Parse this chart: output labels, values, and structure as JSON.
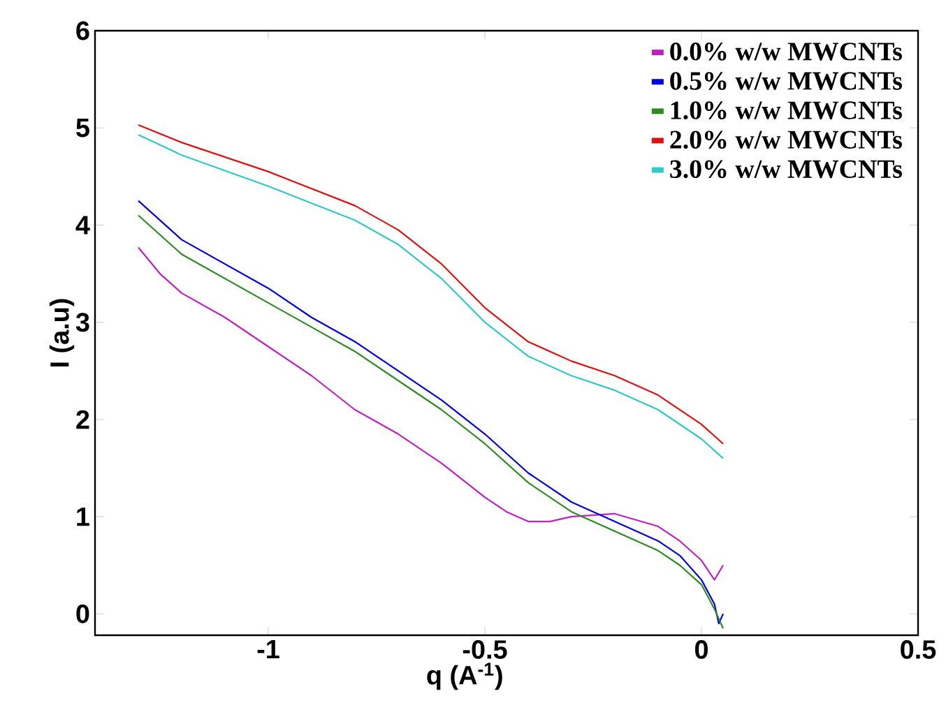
{
  "chart_data": {
    "type": "line",
    "xlabel": "q (A$^{-1}$)",
    "ylabel": "I (a.u)",
    "xlim": [
      -1.4,
      0.5
    ],
    "ylim": [
      -0.22,
      6
    ],
    "xticks": [
      -1,
      -0.5,
      0,
      0.5
    ],
    "yticks": [
      0,
      1,
      2,
      3,
      4,
      5,
      6
    ],
    "legend": "top right",
    "line_style": "solid",
    "series": [
      {
        "name": "0.0% w/w MWCNTs",
        "color": "#c020c0",
        "x": [
          -1.3,
          -1.25,
          -1.2,
          -1.1,
          -1.0,
          -0.9,
          -0.8,
          -0.7,
          -0.6,
          -0.5,
          -0.45,
          -0.4,
          -0.35,
          -0.3,
          -0.2,
          -0.1,
          -0.05,
          0,
          0.03,
          0.05
        ],
        "values": [
          3.77,
          3.5,
          3.3,
          3.05,
          2.75,
          2.45,
          2.1,
          1.85,
          1.55,
          1.2,
          1.05,
          0.95,
          0.95,
          1.0,
          1.03,
          0.9,
          0.75,
          0.55,
          0.35,
          0.5
        ]
      },
      {
        "name": "0.5% w/w MWCNTs",
        "color": "#0000e0",
        "x": [
          -1.3,
          -1.2,
          -1.0,
          -0.9,
          -0.8,
          -0.7,
          -0.6,
          -0.5,
          -0.4,
          -0.3,
          -0.2,
          -0.1,
          -0.05,
          0,
          0.03,
          0.04,
          0.05
        ],
        "values": [
          4.25,
          3.85,
          3.35,
          3.05,
          2.8,
          2.5,
          2.2,
          1.85,
          1.45,
          1.15,
          0.95,
          0.75,
          0.6,
          0.35,
          0.1,
          -0.1,
          0
        ]
      },
      {
        "name": "1.0% w/w MWCNTs",
        "color": "#2e8b22",
        "x": [
          -1.3,
          -1.2,
          -1.0,
          -0.9,
          -0.8,
          -0.7,
          -0.6,
          -0.5,
          -0.4,
          -0.3,
          -0.2,
          -0.1,
          -0.05,
          0,
          0.03,
          0.05
        ],
        "values": [
          4.1,
          3.7,
          3.2,
          2.95,
          2.7,
          2.4,
          2.1,
          1.75,
          1.35,
          1.05,
          0.85,
          0.65,
          0.5,
          0.3,
          0.05,
          -0.15
        ]
      },
      {
        "name": "2.0% w/w MWCNTs",
        "color": "#e01010",
        "x": [
          -1.3,
          -1.2,
          -1.0,
          -0.8,
          -0.7,
          -0.6,
          -0.5,
          -0.4,
          -0.3,
          -0.2,
          -0.1,
          0,
          0.05
        ],
        "values": [
          5.03,
          4.85,
          4.55,
          4.2,
          3.95,
          3.6,
          3.15,
          2.8,
          2.6,
          2.45,
          2.25,
          1.95,
          1.75
        ]
      },
      {
        "name": "3.0% w/w MWCNTs",
        "color": "#30c8c8",
        "x": [
          -1.3,
          -1.2,
          -1.0,
          -0.8,
          -0.7,
          -0.6,
          -0.5,
          -0.4,
          -0.3,
          -0.2,
          -0.1,
          0,
          0.05
        ],
        "values": [
          4.93,
          4.72,
          4.4,
          4.05,
          3.8,
          3.45,
          3.0,
          2.65,
          2.45,
          2.3,
          2.1,
          1.8,
          1.6
        ]
      }
    ]
  }
}
